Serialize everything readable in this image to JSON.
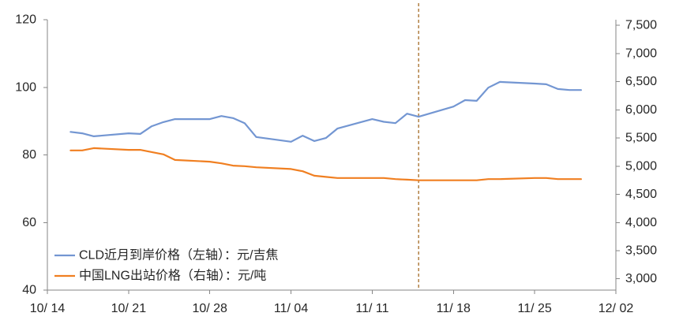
{
  "chart_data": {
    "type": "line",
    "grid": false,
    "legend_position": "bottom-left",
    "x_axis": {
      "tick_labels": [
        "10/ 14",
        "10/ 21",
        "10/ 28",
        "11/ 04",
        "11/ 11",
        "11/ 18",
        "11/ 25",
        "12/ 02"
      ]
    },
    "y_left": {
      "ylim": [
        40,
        120
      ],
      "ticks": [
        40,
        60,
        80,
        100,
        120
      ],
      "tick_labels": [
        "40",
        "60",
        "80",
        "100",
        "120"
      ]
    },
    "y_right": {
      "ylim": [
        2800,
        7600
      ],
      "ticks": [
        3000,
        3500,
        4000,
        4500,
        5000,
        5500,
        6000,
        6500,
        7000,
        7500
      ],
      "tick_labels": [
        "3,000",
        "3,500",
        "4,000",
        "4,500",
        "5,000",
        "5,500",
        "6,000",
        "6,500",
        "7,000",
        "7,500"
      ]
    },
    "x": [
      "10/16",
      "10/17",
      "10/18",
      "10/21",
      "10/22",
      "10/23",
      "10/24",
      "10/25",
      "10/28",
      "10/29",
      "10/30",
      "10/31",
      "11/01",
      "11/04",
      "11/05",
      "11/06",
      "11/07",
      "11/08",
      "11/11",
      "11/12",
      "11/13",
      "11/14",
      "11/15",
      "11/18",
      "11/19",
      "11/20",
      "11/21",
      "11/22",
      "11/25",
      "11/26",
      "11/27",
      "11/28",
      "11/29"
    ],
    "series": [
      {
        "name": "CLD近月到岸价格（左轴）：元/吉焦",
        "axis": "left",
        "color": "#7396D2",
        "values": [
          86.8,
          86.4,
          85.5,
          86.4,
          86.2,
          88.5,
          89.7,
          90.6,
          90.6,
          91.5,
          90.9,
          89.4,
          85.3,
          83.9,
          85.7,
          84.1,
          85.0,
          87.8,
          90.6,
          89.8,
          89.4,
          92.2,
          91.3,
          94.3,
          96.2,
          96.0,
          99.9,
          101.6,
          101.1,
          100.9,
          99.5,
          99.2,
          99.2
        ]
      },
      {
        "name": "中国LNG出站价格（右轴）：元/吨",
        "axis": "right",
        "color": "#F07F21",
        "values": [
          5280,
          5280,
          5320,
          5290,
          5290,
          5250,
          5210,
          5110,
          5080,
          5050,
          5010,
          5000,
          4980,
          4950,
          4910,
          4830,
          4810,
          4790,
          4790,
          4790,
          4770,
          4760,
          4750,
          4750,
          4750,
          4750,
          4770,
          4770,
          4790,
          4790,
          4770,
          4770,
          4770
        ]
      }
    ],
    "annotations": [
      {
        "type": "vertical-line",
        "x": "11/15",
        "style": "dashed",
        "color": "#B5874E"
      }
    ]
  }
}
